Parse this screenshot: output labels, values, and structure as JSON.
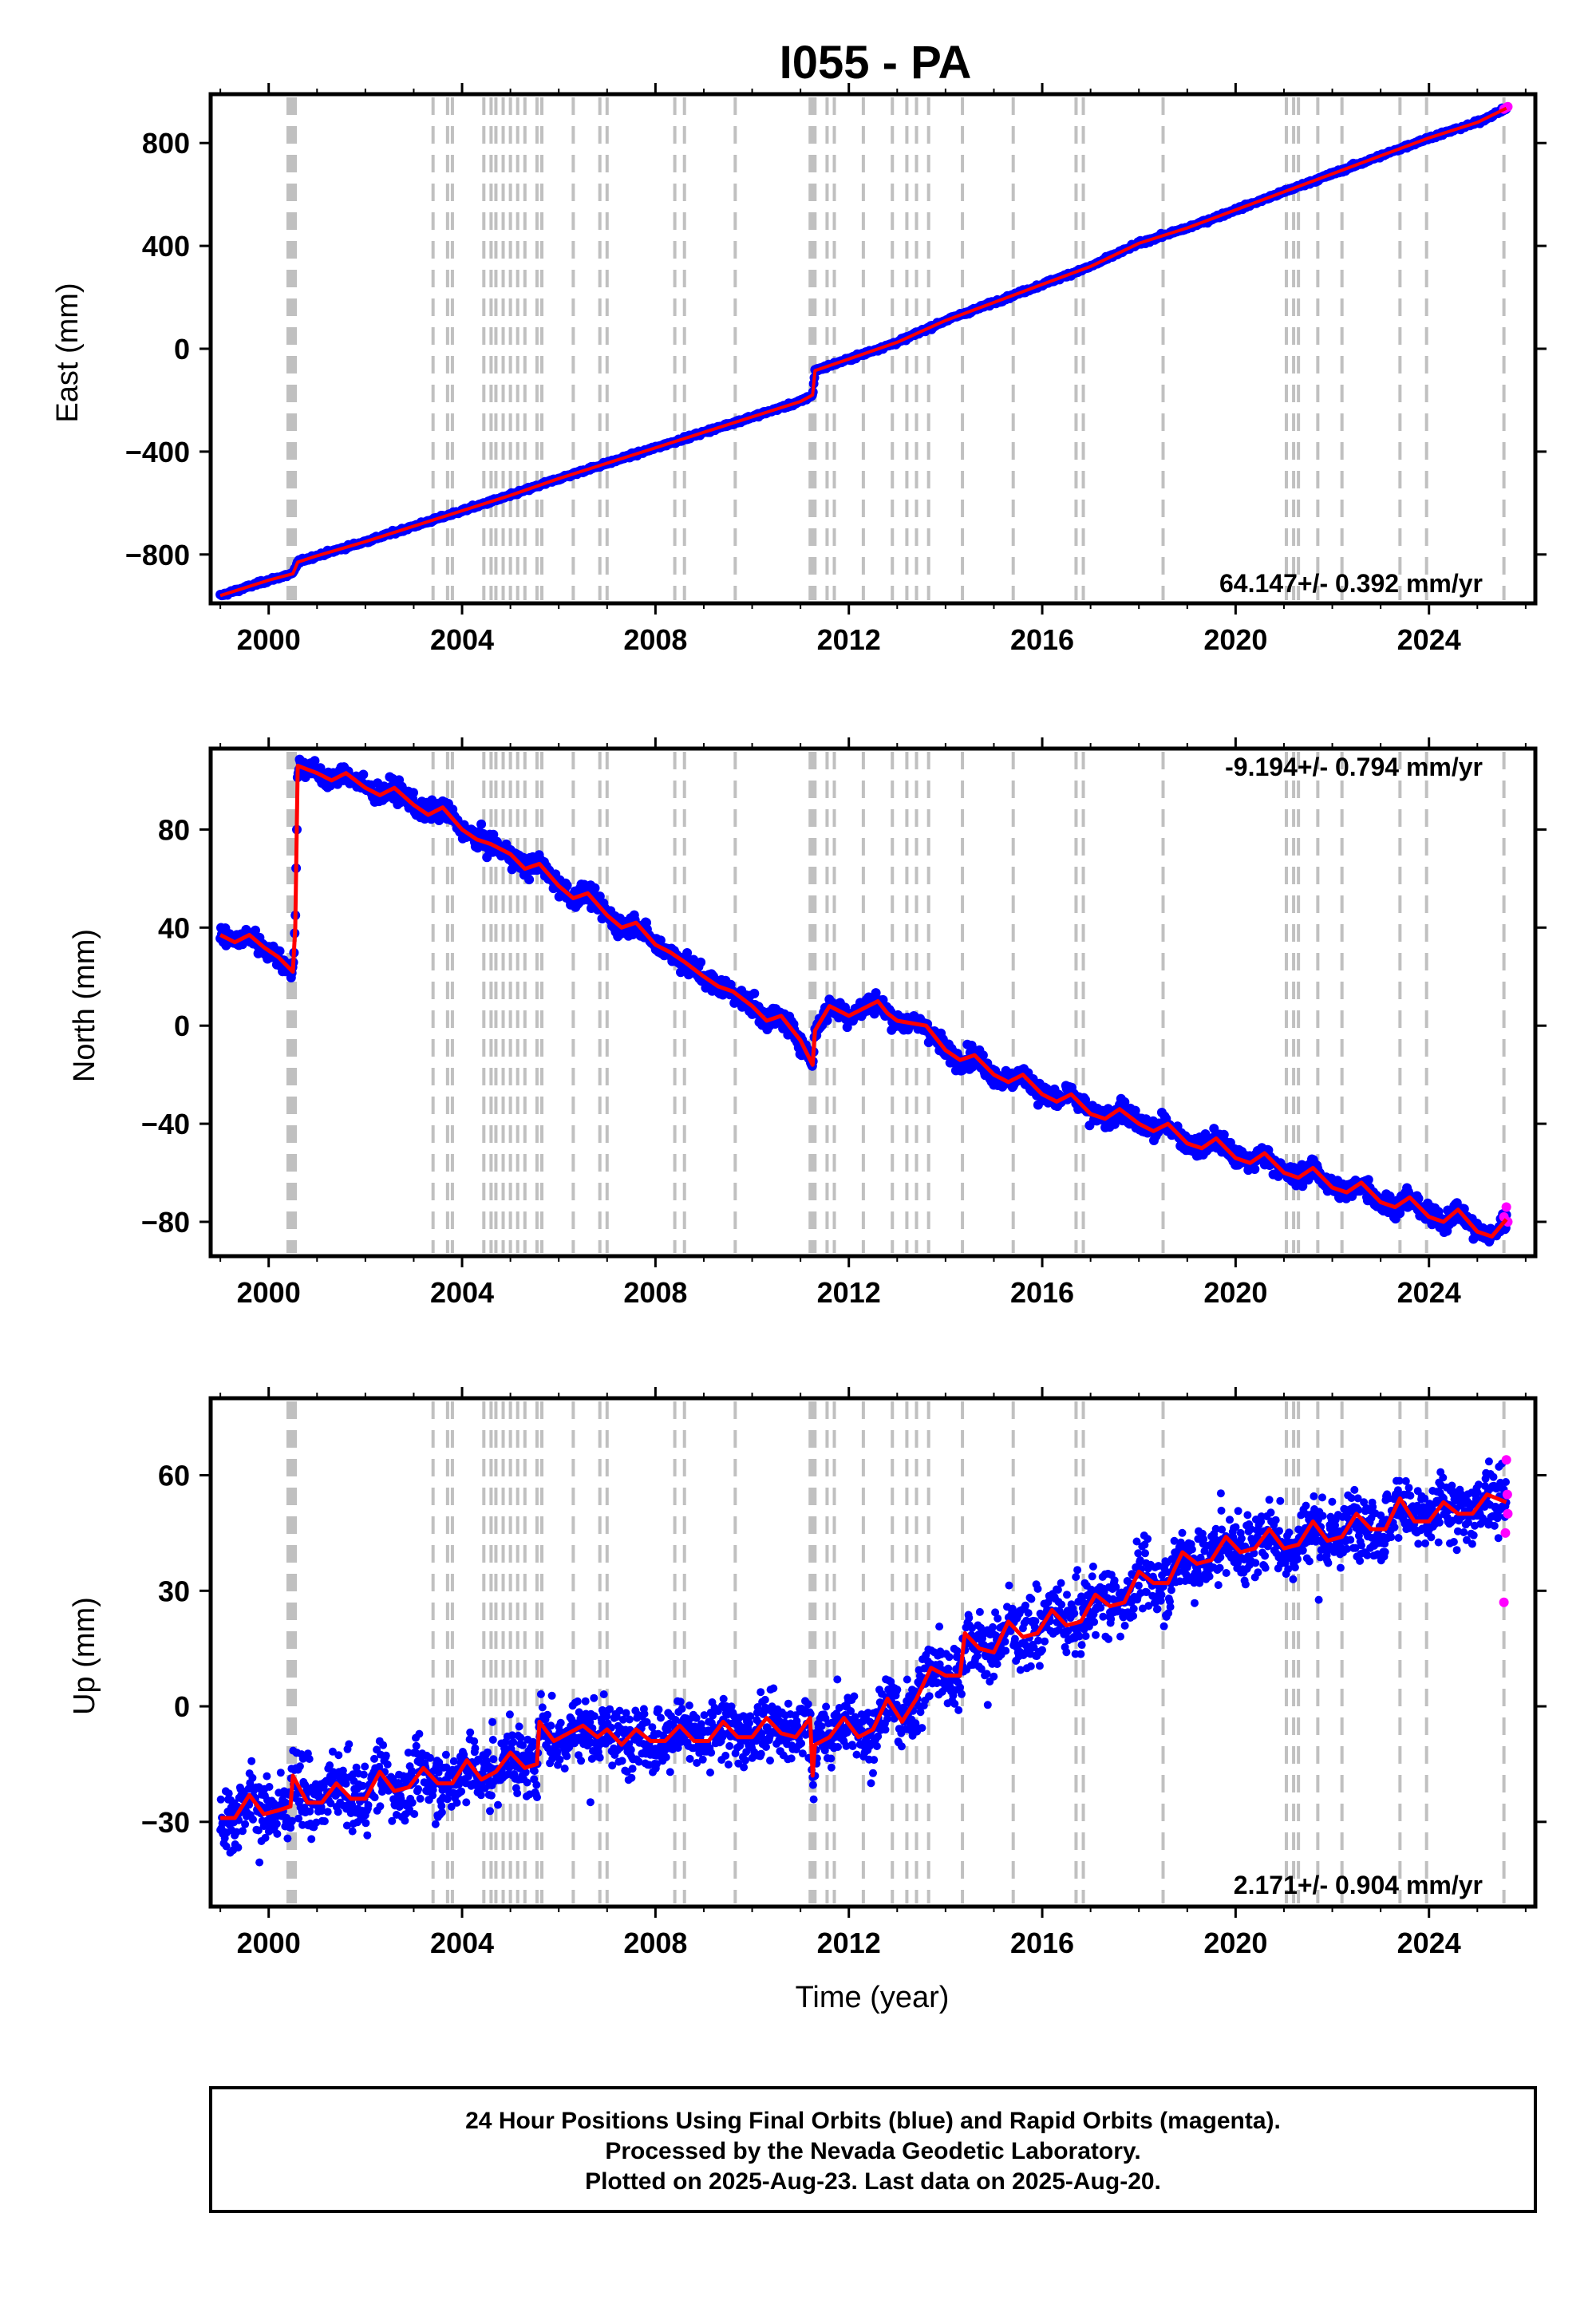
{
  "figure": {
    "title": "I055 - PA",
    "xlabel": "Time (year)",
    "footer": [
      "24 Hour Positions Using Final Orbits (blue) and Rapid Orbits (magenta).",
      "Processed by the Nevada Geodetic Laboratory.",
      "Plotted on 2025-Aug-23. Last data on 2025-Aug-20."
    ]
  },
  "colors": {
    "final_orbits": "#0000ff",
    "rapid_orbits": "#ff00ff",
    "model": "#ff0000",
    "event_lines": "#c0c0c0",
    "frame": "#000000"
  },
  "chart_data": [
    {
      "type": "scatter",
      "panel": "east",
      "ylabel": "East (mm)",
      "rate_text": "64.147+/- 0.392 mm/yr",
      "rate_position": "bottom-right",
      "xlim": [
        1998.8,
        2026.2
      ],
      "ylim": [
        -990,
        990
      ],
      "xticks": [
        2000,
        2004,
        2008,
        2012,
        2016,
        2020,
        2024
      ],
      "yticks": [
        -800,
        -400,
        0,
        400,
        800
      ],
      "series": [
        {
          "name": "Final Orbits",
          "color": "#0000ff",
          "x": [
            1999.0,
            1999.5,
            2000.0,
            2000.5,
            2000.6,
            2001.0,
            2002.0,
            2003.0,
            2004.0,
            2005.0,
            2006.0,
            2007.0,
            2008.0,
            2009.0,
            2010.0,
            2011.0,
            2011.25,
            2011.3,
            2012.0,
            2013.0,
            2014.0,
            2015.0,
            2016.0,
            2017.0,
            2018.0,
            2019.0,
            2020.0,
            2021.0,
            2022.0,
            2023.0,
            2024.0,
            2025.0,
            2025.6
          ],
          "y": [
            -960,
            -930,
            -900,
            -875,
            -830,
            -805,
            -750,
            -690,
            -630,
            -570,
            -505,
            -445,
            -385,
            -325,
            -265,
            -205,
            -180,
            -85,
            -40,
            25,
            110,
            180,
            250,
            320,
            410,
            470,
            540,
            610,
            680,
            750,
            820,
            880,
            935
          ]
        },
        {
          "name": "Rapid Orbits",
          "color": "#ff00ff",
          "x": [
            2025.55,
            2025.6,
            2025.63
          ],
          "y": [
            932,
            938,
            941
          ]
        },
        {
          "name": "Model",
          "color": "#ff0000",
          "x": [
            1999.0,
            1999.5,
            2000.0,
            2000.5,
            2000.6,
            2001.0,
            2002.0,
            2003.0,
            2004.0,
            2005.0,
            2006.0,
            2007.0,
            2008.0,
            2009.0,
            2010.0,
            2011.0,
            2011.25,
            2011.3,
            2012.0,
            2013.0,
            2014.0,
            2015.0,
            2016.0,
            2017.0,
            2018.0,
            2019.0,
            2020.0,
            2021.0,
            2022.0,
            2023.0,
            2024.0,
            2025.0,
            2025.6
          ],
          "y": [
            -960,
            -930,
            -900,
            -875,
            -830,
            -805,
            -750,
            -690,
            -630,
            -570,
            -505,
            -445,
            -385,
            -325,
            -265,
            -205,
            -180,
            -85,
            -40,
            25,
            110,
            180,
            250,
            320,
            410,
            470,
            540,
            610,
            680,
            750,
            820,
            880,
            935
          ]
        }
      ]
    },
    {
      "type": "scatter",
      "panel": "north",
      "ylabel": "North (mm)",
      "rate_text": "-9.194+/- 0.794 mm/yr",
      "rate_position": "top-right",
      "xlim": [
        1998.8,
        2026.2
      ],
      "ylim": [
        -94,
        113
      ],
      "xticks": [
        2000,
        2004,
        2008,
        2012,
        2016,
        2020,
        2024
      ],
      "yticks": [
        -80,
        -40,
        0,
        40,
        80
      ],
      "series": [
        {
          "name": "Final Orbits",
          "color": "#0000ff",
          "x": [
            1999.0,
            1999.4,
            1999.7,
            2000.0,
            2000.4,
            2000.5,
            2000.6,
            2001.0,
            2001.5,
            2002.0,
            2002.5,
            2003.0,
            2003.5,
            2004.0,
            2004.5,
            2005.0,
            2005.5,
            2006.0,
            2006.5,
            2007.0,
            2007.5,
            2008.0,
            2008.5,
            2009.0,
            2009.5,
            2010.0,
            2010.5,
            2011.0,
            2011.25,
            2011.3,
            2011.6,
            2012.0,
            2012.5,
            2012.8,
            2013.2,
            2013.6,
            2014.0,
            2014.5,
            2015.0,
            2015.5,
            2016.0,
            2016.5,
            2017.0,
            2017.5,
            2018.0,
            2018.5,
            2019.0,
            2019.5,
            2020.0,
            2020.5,
            2021.0,
            2021.5,
            2022.0,
            2022.5,
            2023.0,
            2023.5,
            2024.0,
            2024.5,
            2025.0,
            2025.6
          ],
          "y": [
            44,
            40,
            36,
            33,
            20,
            16,
            105,
            104,
            101,
            98,
            93,
            89,
            85,
            84,
            74,
            66,
            58,
            52,
            44,
            39,
            33,
            27,
            22,
            16,
            10,
            4,
            -4,
            -12,
            -18,
            3,
            8,
            5,
            6,
            8,
            3,
            -5,
            -12,
            -18,
            -22,
            -27,
            -30,
            -34,
            -38,
            -37,
            -41,
            -44,
            -48,
            -50,
            -54,
            -56,
            -60,
            -63,
            -66,
            -70,
            -72,
            -76,
            -84,
            -78,
            -83,
            -82
          ]
        },
        {
          "name": "Rapid Orbits",
          "color": "#ff00ff",
          "x": [
            2025.55,
            2025.6,
            2025.63
          ],
          "y": [
            -78,
            -74,
            -80
          ]
        },
        {
          "name": "Model",
          "color": "#ff0000",
          "x": [
            1999.0,
            1999.3,
            1999.6,
            1999.9,
            2000.2,
            2000.5,
            2000.55,
            2000.6,
            2001.0,
            2001.3,
            2001.6,
            2002.0,
            2002.3,
            2002.6,
            2003.0,
            2003.3,
            2003.6,
            2004.0,
            2004.3,
            2004.6,
            2005.0,
            2005.3,
            2005.6,
            2006.0,
            2006.3,
            2006.6,
            2007.0,
            2007.3,
            2007.6,
            2008.0,
            2008.3,
            2008.6,
            2009.0,
            2009.3,
            2009.6,
            2010.0,
            2010.3,
            2010.6,
            2011.0,
            2011.25,
            2011.3,
            2011.6,
            2012.0,
            2012.3,
            2012.6,
            2012.8,
            2013.0,
            2013.3,
            2013.6,
            2014.0,
            2014.3,
            2014.6,
            2015.0,
            2015.3,
            2015.6,
            2016.0,
            2016.3,
            2016.6,
            2017.0,
            2017.3,
            2017.6,
            2018.0,
            2018.3,
            2018.6,
            2019.0,
            2019.3,
            2019.6,
            2020.0,
            2020.3,
            2020.6,
            2021.0,
            2021.3,
            2021.6,
            2022.0,
            2022.3,
            2022.6,
            2023.0,
            2023.3,
            2023.6,
            2024.0,
            2024.3,
            2024.6,
            2025.0,
            2025.3,
            2025.6
          ],
          "y": [
            37,
            34,
            37,
            32,
            28,
            22,
            40,
            106,
            103,
            100,
            103,
            97,
            94,
            97,
            90,
            86,
            89,
            80,
            76,
            74,
            70,
            64,
            66,
            57,
            52,
            54,
            45,
            40,
            42,
            33,
            30,
            26,
            20,
            16,
            14,
            8,
            2,
            4,
            -6,
            -16,
            -2,
            8,
            4,
            7,
            10,
            5,
            2,
            1,
            0,
            -10,
            -14,
            -12,
            -20,
            -23,
            -20,
            -28,
            -31,
            -28,
            -36,
            -38,
            -34,
            -40,
            -43,
            -40,
            -48,
            -50,
            -46,
            -54,
            -56,
            -52,
            -60,
            -62,
            -58,
            -66,
            -68,
            -64,
            -72,
            -74,
            -70,
            -78,
            -80,
            -75,
            -84,
            -86,
            -79
          ]
        }
      ]
    },
    {
      "type": "scatter",
      "panel": "up",
      "ylabel": "Up (mm)",
      "rate_text": "2.171+/- 0.904 mm/yr",
      "rate_position": "bottom-right",
      "xlim": [
        1998.8,
        2026.2
      ],
      "ylim": [
        -52,
        80
      ],
      "xticks": [
        2000,
        2004,
        2008,
        2012,
        2016,
        2020,
        2024
      ],
      "yticks": [
        -30,
        0,
        30,
        60
      ],
      "series": [
        {
          "name": "Final Orbits",
          "color": "#0000ff",
          "x": [
            1999.0,
            1999.5,
            2000.0,
            2000.5,
            2001.0,
            2001.5,
            2002.0,
            2002.5,
            2003.0,
            2003.5,
            2004.0,
            2004.5,
            2005.0,
            2005.5,
            2006.0,
            2006.5,
            2007.0,
            2007.5,
            2008.0,
            2008.5,
            2009.0,
            2009.5,
            2010.0,
            2010.5,
            2011.0,
            2011.5,
            2012.0,
            2012.5,
            2013.0,
            2013.5,
            2014.0,
            2014.5,
            2015.0,
            2015.5,
            2016.0,
            2016.5,
            2017.0,
            2017.5,
            2018.0,
            2018.5,
            2019.0,
            2019.5,
            2020.0,
            2020.5,
            2021.0,
            2021.5,
            2022.0,
            2022.5,
            2023.0,
            2023.5,
            2024.0,
            2024.5,
            2025.0,
            2025.6
          ],
          "y": [
            -29,
            -27,
            -27,
            -25,
            -24,
            -24,
            -22,
            -22,
            -21,
            -19,
            -18,
            -17,
            -17,
            -10,
            -7,
            -6,
            -8,
            -8,
            -8,
            -7,
            -8,
            -8,
            -7,
            -7,
            -8,
            -6,
            -3,
            -3,
            1,
            5,
            8,
            14,
            17,
            20,
            22,
            24,
            27,
            31,
            34,
            36,
            38,
            40,
            41,
            42,
            43,
            44,
            45,
            46,
            47,
            48,
            48,
            49,
            50,
            51
          ]
        },
        {
          "name": "Rapid Orbits",
          "color": "#ff00ff",
          "x": [
            2025.55,
            2025.58,
            2025.6,
            2025.62,
            2025.63
          ],
          "y": [
            27,
            45,
            64,
            55,
            50
          ]
        },
        {
          "name": "Model",
          "color": "#ff0000",
          "x": [
            1999.0,
            1999.3,
            1999.6,
            1999.9,
            2000.2,
            2000.45,
            2000.5,
            2000.8,
            2001.1,
            2001.4,
            2001.7,
            2002.0,
            2002.3,
            2002.6,
            2002.9,
            2003.2,
            2003.5,
            2003.8,
            2004.1,
            2004.4,
            2004.7,
            2005.0,
            2005.3,
            2005.55,
            2005.6,
            2005.9,
            2006.2,
            2006.5,
            2006.8,
            2007.0,
            2007.3,
            2007.6,
            2007.9,
            2008.2,
            2008.5,
            2008.8,
            2009.1,
            2009.4,
            2009.7,
            2010.0,
            2010.3,
            2010.6,
            2010.9,
            2011.2,
            2011.25,
            2011.3,
            2011.6,
            2011.9,
            2012.2,
            2012.5,
            2012.8,
            2013.1,
            2013.4,
            2013.7,
            2014.0,
            2014.3,
            2014.4,
            2014.7,
            2015.0,
            2015.3,
            2015.6,
            2015.9,
            2016.2,
            2016.5,
            2016.8,
            2017.1,
            2017.4,
            2017.7,
            2018.0,
            2018.3,
            2018.6,
            2018.9,
            2019.2,
            2019.5,
            2019.8,
            2020.1,
            2020.4,
            2020.7,
            2021.0,
            2021.3,
            2021.6,
            2021.9,
            2022.2,
            2022.5,
            2022.8,
            2023.1,
            2023.4,
            2023.7,
            2024.0,
            2024.3,
            2024.6,
            2024.9,
            2025.2,
            2025.6
          ],
          "y": [
            -29,
            -29,
            -23,
            -28,
            -27,
            -26,
            -18,
            -25,
            -25,
            -20,
            -24,
            -24,
            -17,
            -22,
            -21,
            -16,
            -20,
            -20,
            -14,
            -19,
            -17,
            -12,
            -16,
            -15,
            -4,
            -9,
            -7,
            -5,
            -8,
            -6,
            -10,
            -6,
            -9,
            -9,
            -5,
            -9,
            -9,
            -4,
            -8,
            -8,
            -3,
            -7,
            -8,
            -3,
            -18,
            -10,
            -8,
            -3,
            -8,
            -6,
            2,
            -4,
            2,
            10,
            8,
            8,
            19,
            15,
            14,
            22,
            18,
            19,
            25,
            21,
            22,
            29,
            26,
            27,
            35,
            32,
            32,
            40,
            37,
            38,
            44,
            40,
            41,
            46,
            41,
            42,
            48,
            43,
            44,
            50,
            46,
            46,
            54,
            48,
            48,
            53,
            50,
            50,
            55,
            53
          ]
        }
      ]
    }
  ],
  "event_epochs": [
    2000.4,
    2000.45,
    2000.5,
    2000.55,
    2003.4,
    2003.7,
    2003.8,
    2004.45,
    2004.6,
    2004.7,
    2004.85,
    2005.0,
    2005.15,
    2005.3,
    2005.55,
    2005.65,
    2006.3,
    2006.85,
    2007.0,
    2008.4,
    2008.6,
    2009.65,
    2011.2,
    2011.25,
    2011.3,
    2011.55,
    2011.7,
    2012.3,
    2012.9,
    2013.2,
    2013.4,
    2013.65,
    2014.35,
    2015.4,
    2016.7,
    2016.85,
    2018.5,
    2021.05,
    2021.2,
    2021.3,
    2021.7,
    2022.2,
    2023.4,
    2023.95,
    2025.55
  ]
}
